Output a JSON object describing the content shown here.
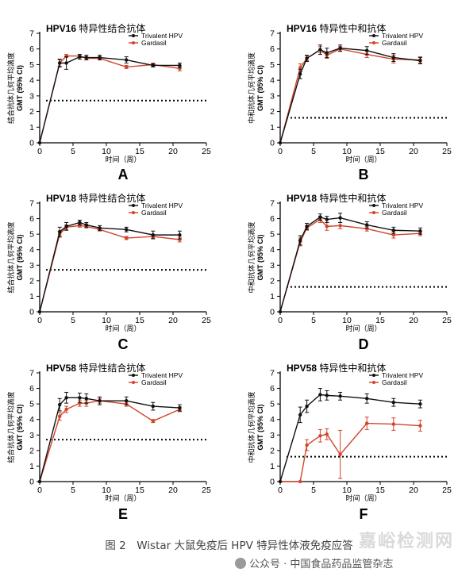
{
  "figure": {
    "caption": "图 2　Wistar 大鼠免疫后 HPV 特异性体液免疫应答",
    "watermark_site": "嘉峪检测网",
    "watermark_account": "公众号 · 中国食品药品监管杂志",
    "wechat_icon": "wechat-icon"
  },
  "chart_data": [
    {
      "type": "line",
      "panel_letter": "A",
      "title_hpv": "HPV16",
      "title_rest": "特异性结合抗体",
      "ylabel_cn": "结合抗体几何平均滴度",
      "ylabel_en": "GMT (95% CI)",
      "xlabel": "时间（周）",
      "xlim": [
        0,
        25
      ],
      "ylim": [
        0,
        7
      ],
      "xticks": [
        0,
        5,
        10,
        15,
        20,
        25
      ],
      "yticks": [
        0,
        1,
        2,
        3,
        4,
        5,
        6,
        7
      ],
      "threshold": 2.7,
      "legend_position": "top-right",
      "series": [
        {
          "name": "Trivalent HPV",
          "color": "#111111",
          "x": [
            0,
            3,
            4,
            6,
            7,
            9,
            13,
            17,
            21
          ],
          "y": [
            0,
            5.1,
            5.1,
            5.5,
            5.45,
            5.45,
            5.3,
            4.95,
            4.95
          ],
          "err": [
            0,
            0.25,
            0.4,
            0.15,
            0.15,
            0.15,
            0.2,
            0.1,
            0.15
          ]
        },
        {
          "name": "Gardasil",
          "color": "#d0452b",
          "x": [
            0,
            3,
            4,
            6,
            7,
            9,
            13,
            17,
            21
          ],
          "y": [
            0,
            5.1,
            5.55,
            5.55,
            5.4,
            5.4,
            4.85,
            5.0,
            4.75
          ],
          "err": [
            0,
            0.2,
            0.1,
            0.1,
            0.1,
            0.1,
            0.1,
            0.1,
            0.15
          ]
        }
      ]
    },
    {
      "type": "line",
      "panel_letter": "B",
      "title_hpv": "HPV16",
      "title_rest": "特异性中和抗体",
      "ylabel_cn": "中和抗体几何平均滴度",
      "ylabel_en": "GMT (95% CI)",
      "xlabel": "时间（周）",
      "xlim": [
        0,
        25
      ],
      "ylim": [
        0,
        7
      ],
      "xticks": [
        0,
        5,
        10,
        15,
        20,
        25
      ],
      "yticks": [
        0,
        1,
        2,
        3,
        4,
        5,
        6,
        7
      ],
      "threshold": 1.6,
      "legend_position": "top-right",
      "series": [
        {
          "name": "Trivalent HPV",
          "color": "#111111",
          "x": [
            0,
            3,
            4,
            6,
            7,
            9,
            13,
            17,
            21
          ],
          "y": [
            0,
            4.4,
            5.4,
            5.95,
            5.75,
            6.05,
            5.9,
            5.45,
            5.25
          ],
          "err": [
            0,
            0.3,
            0.2,
            0.3,
            0.3,
            0.2,
            0.25,
            0.25,
            0.2
          ]
        },
        {
          "name": "Gardasil",
          "color": "#d0452b",
          "x": [
            0,
            3,
            4,
            6,
            7,
            9,
            13,
            17,
            21
          ],
          "y": [
            0,
            4.8,
            5.4,
            5.95,
            5.6,
            6.0,
            5.65,
            5.35,
            5.3
          ],
          "err": [
            0,
            0.25,
            0.15,
            0.2,
            0.2,
            0.15,
            0.2,
            0.25,
            0.2
          ]
        }
      ]
    },
    {
      "type": "line",
      "panel_letter": "C",
      "title_hpv": "HPV18",
      "title_rest": "特异性结合抗体",
      "ylabel_cn": "结合抗体几何平均滴度",
      "ylabel_en": "GMT (95% CI)",
      "xlabel": "时间（周）",
      "xlim": [
        0,
        25
      ],
      "ylim": [
        0,
        7
      ],
      "xticks": [
        0,
        5,
        10,
        15,
        20,
        25
      ],
      "yticks": [
        0,
        1,
        2,
        3,
        4,
        5,
        6,
        7
      ],
      "threshold": 2.7,
      "legend_position": "top-right",
      "series": [
        {
          "name": "Trivalent HPV",
          "color": "#111111",
          "x": [
            0,
            3,
            4,
            6,
            7,
            9,
            13,
            17,
            21
          ],
          "y": [
            0,
            5.15,
            5.5,
            5.75,
            5.6,
            5.4,
            5.3,
            4.95,
            4.95
          ],
          "err": [
            0,
            0.3,
            0.25,
            0.15,
            0.15,
            0.15,
            0.15,
            0.25,
            0.25
          ]
        },
        {
          "name": "Gardasil",
          "color": "#d0452b",
          "x": [
            0,
            3,
            4,
            6,
            7,
            9,
            13,
            17,
            21
          ],
          "y": [
            0,
            5.0,
            5.45,
            5.55,
            5.5,
            5.3,
            4.75,
            4.85,
            4.65
          ],
          "err": [
            0,
            0.2,
            0.15,
            0.1,
            0.1,
            0.1,
            0.1,
            0.1,
            0.15
          ]
        }
      ]
    },
    {
      "type": "line",
      "panel_letter": "D",
      "title_hpv": "HPV18",
      "title_rest": "特异性中和抗体",
      "ylabel_cn": "中和抗体几何平均滴度",
      "ylabel_en": "GMT (95% CI)",
      "xlabel": "时间（周）",
      "xlim": [
        0,
        25
      ],
      "ylim": [
        0,
        7
      ],
      "xticks": [
        0,
        5,
        10,
        15,
        20,
        25
      ],
      "yticks": [
        0,
        1,
        2,
        3,
        4,
        5,
        6,
        7
      ],
      "threshold": 1.6,
      "legend_position": "top-right",
      "series": [
        {
          "name": "Trivalent HPV",
          "color": "#111111",
          "x": [
            0,
            3,
            4,
            6,
            7,
            9,
            13,
            17,
            21
          ],
          "y": [
            0,
            4.6,
            5.5,
            6.1,
            5.95,
            6.05,
            5.6,
            5.25,
            5.2
          ],
          "err": [
            0,
            0.3,
            0.2,
            0.2,
            0.2,
            0.3,
            0.2,
            0.2,
            0.2
          ]
        },
        {
          "name": "Gardasil",
          "color": "#d0452b",
          "x": [
            0,
            3,
            4,
            6,
            7,
            9,
            13,
            17,
            21
          ],
          "y": [
            0,
            4.5,
            5.4,
            5.95,
            5.5,
            5.55,
            5.35,
            4.95,
            5.05
          ],
          "err": [
            0,
            0.25,
            0.15,
            0.2,
            0.25,
            0.2,
            0.15,
            0.2,
            0.15
          ]
        }
      ]
    },
    {
      "type": "line",
      "panel_letter": "E",
      "title_hpv": "HPV58",
      "title_rest": "特异性结合抗体",
      "ylabel_cn": "结合抗体几何平均滴度",
      "ylabel_en": "GMT (95% CI)",
      "xlabel": "时间（周）",
      "xlim": [
        0,
        25
      ],
      "ylim": [
        0,
        7
      ],
      "xticks": [
        0,
        5,
        10,
        15,
        20,
        25
      ],
      "yticks": [
        0,
        1,
        2,
        3,
        4,
        5,
        6,
        7
      ],
      "threshold": 2.7,
      "legend_position": "top-right",
      "series": [
        {
          "name": "Trivalent HPV",
          "color": "#111111",
          "x": [
            0,
            3,
            4,
            6,
            7,
            9,
            13,
            17,
            21
          ],
          "y": [
            0,
            4.95,
            5.4,
            5.4,
            5.35,
            5.2,
            5.2,
            4.85,
            4.75
          ],
          "err": [
            0,
            0.4,
            0.35,
            0.3,
            0.3,
            0.25,
            0.25,
            0.25,
            0.2
          ]
        },
        {
          "name": "Gardasil",
          "color": "#d0452b",
          "x": [
            0,
            3,
            4,
            6,
            7,
            9,
            13,
            17,
            21
          ],
          "y": [
            0,
            4.2,
            4.65,
            5.05,
            5.05,
            5.2,
            5.0,
            3.9,
            4.65
          ],
          "err": [
            0,
            0.25,
            0.2,
            0.2,
            0.2,
            0.15,
            0.15,
            0.1,
            0.15
          ]
        }
      ]
    },
    {
      "type": "line",
      "panel_letter": "F",
      "title_hpv": "HPV58",
      "title_rest": "特异性中和抗体",
      "ylabel_cn": "中和抗体几何平均滴度",
      "ylabel_en": "GMT (95% CI)",
      "xlabel": "时间（周）",
      "xlim": [
        0,
        25
      ],
      "ylim": [
        0,
        7
      ],
      "xticks": [
        0,
        5,
        10,
        15,
        20,
        25
      ],
      "yticks": [
        0,
        1,
        2,
        3,
        4,
        5,
        6,
        7
      ],
      "threshold": 1.6,
      "legend_position": "top-right",
      "series": [
        {
          "name": "Trivalent HPV",
          "color": "#111111",
          "x": [
            0,
            3,
            4,
            6,
            7,
            9,
            13,
            17,
            21
          ],
          "y": [
            0,
            4.3,
            4.85,
            5.6,
            5.55,
            5.5,
            5.35,
            5.1,
            5.0
          ],
          "err": [
            0,
            0.5,
            0.4,
            0.4,
            0.3,
            0.25,
            0.3,
            0.25,
            0.25
          ]
        },
        {
          "name": "Gardasil",
          "color": "#d0452b",
          "x": [
            0,
            3,
            4,
            6,
            7,
            9,
            13,
            17,
            21
          ],
          "y": [
            0,
            0,
            2.35,
            2.95,
            3.05,
            1.75,
            3.75,
            3.7,
            3.6
          ],
          "err": [
            0,
            0,
            0.35,
            0.4,
            0.35,
            1.55,
            0.4,
            0.4,
            0.35
          ]
        }
      ]
    }
  ]
}
